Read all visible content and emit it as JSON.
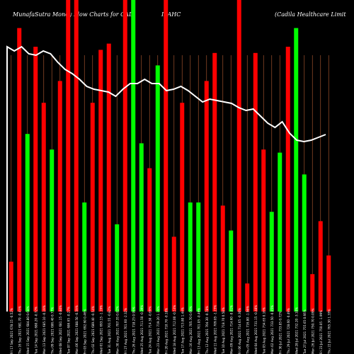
{
  "chart_data": {
    "type": "bar",
    "title_parts": [
      "MunafaSutra  Money Flow  Charts for CAD",
      "ILAHC",
      "(Cadila  Healthcare   Limit"
    ],
    "ylim": [
      0,
      100
    ],
    "grid": "vertical",
    "background": "#000000",
    "colors": {
      "up": "#00ff00",
      "down": "#ff0000",
      "line": "#ffffff",
      "grid": "#a0522d"
    },
    "bars": [
      {
        "date": "Fri 17 Sep 2021",
        "price": "678.15",
        "change": "-0.52%",
        "value": 16,
        "color": "red"
      },
      {
        "date": "Thu 16 Sep 2021",
        "price": "681.70",
        "change": "-0.45%",
        "value": 91,
        "color": "red"
      },
      {
        "date": "Wed 15 Sep 2021",
        "price": "684.80",
        "change": "0.68%",
        "value": 57,
        "color": "green"
      },
      {
        "date": "Tue 14 Sep 2021",
        "price": "680.20",
        "change": "-0.72%",
        "value": 85,
        "color": "red"
      },
      {
        "date": "Mon 13 Sep 2021",
        "price": "685.10",
        "change": "-0.19%",
        "value": 67,
        "color": "red"
      },
      {
        "date": "Thu 09 Sep 2021",
        "price": "686.40",
        "change": "0.77%",
        "value": 52,
        "color": "green"
      },
      {
        "date": "Wed 08 Sep 2021",
        "price": "681.15",
        "change": "-0.80%",
        "value": 74,
        "color": "red"
      },
      {
        "date": "Tue 07 Sep 2021",
        "price": "686.65",
        "change": "-0.27%",
        "value": 100,
        "color": "red"
      },
      {
        "date": "Mon 06 Sep 2021",
        "price": "688.50",
        "change": "-0.59%",
        "value": 100,
        "color": "red"
      },
      {
        "date": "Fri 03 Sep 2021",
        "price": "692.60",
        "change": "0.46%",
        "value": 35,
        "color": "green"
      },
      {
        "date": "Thu 02 Sep 2021",
        "price": "689.40",
        "change": "-0.54%",
        "value": 67,
        "color": "red"
      },
      {
        "date": "Wed 01 Sep 2021",
        "price": "693.15",
        "change": "-1.19%",
        "value": 84,
        "color": "red"
      },
      {
        "date": "Tue 31 Aug 2021",
        "price": "701.55",
        "change": "-0.82%",
        "value": 86,
        "color": "red"
      },
      {
        "date": "Mon 30 Aug 2021",
        "price": "707.35",
        "change": "0.82%",
        "value": 28,
        "color": "green"
      },
      {
        "date": "Fri 27 Aug 2021",
        "price": "701.60",
        "change": "-2.32%",
        "value": 100,
        "color": "red"
      },
      {
        "date": "Thu 26 Aug 2021",
        "price": "718.25",
        "change": "0.95%",
        "value": 100,
        "color": "green"
      },
      {
        "date": "Wed 25 Aug 2021",
        "price": "711.50",
        "change": "-0.39%",
        "value": 54,
        "color": "green"
      },
      {
        "date": "Tue 24 Aug 2021",
        "price": "714.30",
        "change": "-0.69%",
        "value": 46,
        "color": "red"
      },
      {
        "date": "Mon 23 Aug 2021",
        "price": "719.20",
        "change": "1.19%",
        "value": 79,
        "color": "green"
      },
      {
        "date": "Fri 20 Aug 2021",
        "price": "710.70",
        "change": "-0.18%",
        "value": 100,
        "color": "red"
      },
      {
        "date": "Wed 18 Aug 2021",
        "price": "712.00",
        "change": "-0.53%",
        "value": 24,
        "color": "red"
      },
      {
        "date": "Tue 17 Aug 2021",
        "price": "715.80",
        "change": "1.44%",
        "value": 67,
        "color": "red"
      },
      {
        "date": "Mon 16 Aug 2021",
        "price": "705.70",
        "change": "0.66%",
        "value": 35,
        "color": "green"
      },
      {
        "date": "Fri 13 Aug 2021",
        "price": "701.05",
        "change": "-0.46%",
        "value": 35,
        "color": "green"
      },
      {
        "date": "Thu 12 Aug 2021",
        "price": "704.30",
        "change": "-0.78%",
        "value": 74,
        "color": "red"
      },
      {
        "date": "Wed 11 Aug 2021",
        "price": "709.85",
        "change": "-1.23%",
        "value": 83,
        "color": "red"
      },
      {
        "date": "Tue 10 Aug 2021",
        "price": "718.70",
        "change": "0.58%",
        "value": 34,
        "color": "red"
      },
      {
        "date": "Mon 09 Aug 2021",
        "price": "714.60",
        "change": "-0.01%",
        "value": 26,
        "color": "green"
      },
      {
        "date": "Fri 06 Aug 2021",
        "price": "714.65",
        "change": "-0.30%",
        "value": 100,
        "color": "red"
      },
      {
        "date": "Thu 05 Aug 2021",
        "price": "716.80",
        "change": "-1.96%",
        "value": 9,
        "color": "red"
      },
      {
        "date": "Wed 04 Aug 2021",
        "price": "731.15",
        "change": "-0.48%",
        "value": 83,
        "color": "red"
      },
      {
        "date": "Tue 03 Aug 2021",
        "price": "734.65",
        "change": "0.16%",
        "value": 52,
        "color": "red"
      },
      {
        "date": "Mon 02 Aug 2021",
        "price": "733.50",
        "change": "-0.05%",
        "value": 32,
        "color": "green"
      },
      {
        "date": "Fri 30 Jul 2021",
        "price": "733.85",
        "change": "0.72%",
        "value": 51,
        "color": "green"
      },
      {
        "date": "Thu 29 Jul 2021",
        "price": "728.60",
        "change": "-0.49%",
        "value": 85,
        "color": "red"
      },
      {
        "date": "Wed 28 Jul 2021",
        "price": "732.20",
        "change": "-3.10%",
        "value": 91,
        "color": "green"
      },
      {
        "date": "Tue 27 Jul 2021",
        "price": "755.65",
        "change": "0.66%",
        "value": 44,
        "color": "green"
      },
      {
        "date": "Mon 26 Jul 2021",
        "price": "750.70",
        "change": "0.09%",
        "value": 12,
        "color": "red"
      },
      {
        "date": "Fri 23 Jul 2021",
        "price": "750.05",
        "change": "-1.99%",
        "value": 29,
        "color": "red"
      },
      {
        "date": "Thu 22 Jul 2021",
        "price": "765.30",
        "change": "1.33%",
        "value": 18,
        "color": "red"
      }
    ],
    "line": [
      8,
      11,
      8,
      13,
      14,
      11,
      13,
      19,
      24,
      27,
      31,
      36,
      38,
      39,
      40,
      43,
      38,
      34,
      34,
      31,
      34,
      34,
      39,
      38,
      36,
      39,
      43,
      47,
      45,
      46,
      47,
      48,
      51,
      53,
      52,
      57,
      62,
      65,
      61,
      69,
      74,
      75,
      74,
      72,
      70
    ]
  }
}
